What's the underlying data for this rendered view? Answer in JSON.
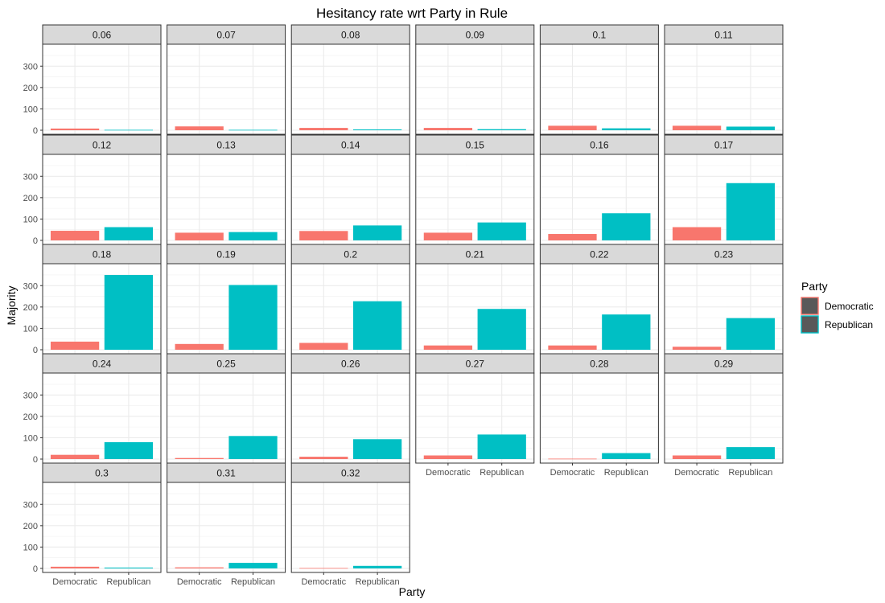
{
  "chart_data": {
    "type": "bar",
    "title": "Hesitancy rate wrt Party in Rule",
    "xlabel": "Party",
    "ylabel": "Majority",
    "categories": [
      "Democratic",
      "Republican"
    ],
    "y_ticks": [
      "0",
      "100",
      "200",
      "300"
    ],
    "ylim": [
      0,
      380
    ],
    "grid": true,
    "legend": {
      "title": "Party",
      "placement": "right",
      "entries": [
        {
          "name": "Democratic",
          "color": "#F8766D"
        },
        {
          "name": "Republican",
          "color": "#00BFC4"
        }
      ]
    },
    "series": [
      {
        "name": "Democratic",
        "color": "#F8766D"
      },
      {
        "name": "Republican",
        "color": "#00BFC4"
      }
    ],
    "panels": [
      {
        "label": "0.06",
        "values": [
          8,
          2
        ]
      },
      {
        "label": "0.07",
        "values": [
          18,
          2
        ]
      },
      {
        "label": "0.08",
        "values": [
          11,
          4
        ]
      },
      {
        "label": "0.09",
        "values": [
          11,
          5
        ]
      },
      {
        "label": "0.1",
        "values": [
          21,
          9
        ]
      },
      {
        "label": "0.11",
        "values": [
          21,
          17
        ]
      },
      {
        "label": "0.12",
        "values": [
          45,
          62
        ]
      },
      {
        "label": "0.13",
        "values": [
          36,
          39
        ]
      },
      {
        "label": "0.14",
        "values": [
          44,
          70
        ]
      },
      {
        "label": "0.15",
        "values": [
          36,
          84
        ]
      },
      {
        "label": "0.16",
        "values": [
          30,
          127
        ]
      },
      {
        "label": "0.17",
        "values": [
          62,
          268
        ]
      },
      {
        "label": "0.18",
        "values": [
          38,
          350
        ]
      },
      {
        "label": "0.19",
        "values": [
          27,
          303
        ]
      },
      {
        "label": "0.2",
        "values": [
          32,
          227
        ]
      },
      {
        "label": "0.21",
        "values": [
          20,
          191
        ]
      },
      {
        "label": "0.22",
        "values": [
          20,
          165
        ]
      },
      {
        "label": "0.23",
        "values": [
          14,
          148
        ]
      },
      {
        "label": "0.24",
        "values": [
          20,
          79
        ]
      },
      {
        "label": "0.25",
        "values": [
          5,
          108
        ]
      },
      {
        "label": "0.26",
        "values": [
          11,
          93
        ]
      },
      {
        "label": "0.27",
        "values": [
          17,
          115
        ]
      },
      {
        "label": "0.28",
        "values": [
          2,
          28
        ]
      },
      {
        "label": "0.29",
        "values": [
          17,
          56
        ]
      },
      {
        "label": "0.3",
        "values": [
          8,
          4
        ]
      },
      {
        "label": "0.31",
        "values": [
          5,
          26
        ]
      },
      {
        "label": "0.32",
        "values": [
          2,
          12
        ]
      }
    ]
  }
}
